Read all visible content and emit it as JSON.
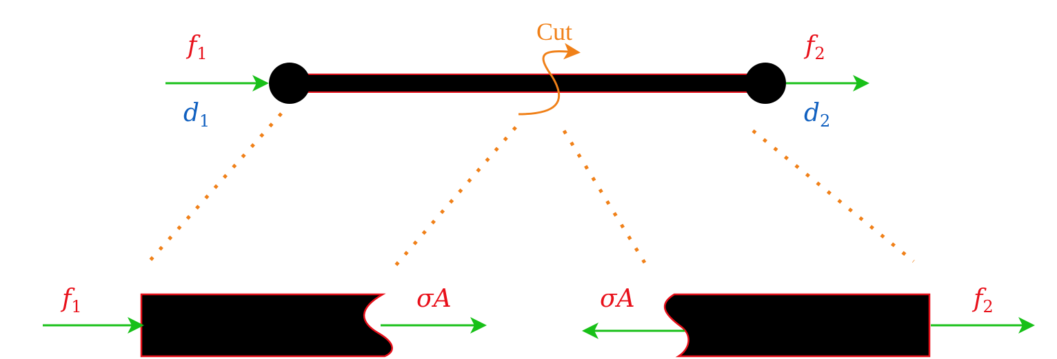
{
  "colors": {
    "force": "#e8101a",
    "displacement": "#1060c0",
    "arrow": "#18c018",
    "cut": "#f08018",
    "bar": "#000000",
    "outline": "#e8101a"
  },
  "top": {
    "f1": {
      "base": "f",
      "sub": "1"
    },
    "f2": {
      "base": "f",
      "sub": "2"
    },
    "d1": {
      "base": "d",
      "sub": "1"
    },
    "d2": {
      "base": "d",
      "sub": "2"
    },
    "cut_label": "Cut"
  },
  "bottom_left": {
    "f1": {
      "base": "f",
      "sub": "1"
    },
    "sigma": "σA"
  },
  "bottom_right": {
    "f2": {
      "base": "f",
      "sub": "2"
    },
    "sigma": "σA"
  }
}
